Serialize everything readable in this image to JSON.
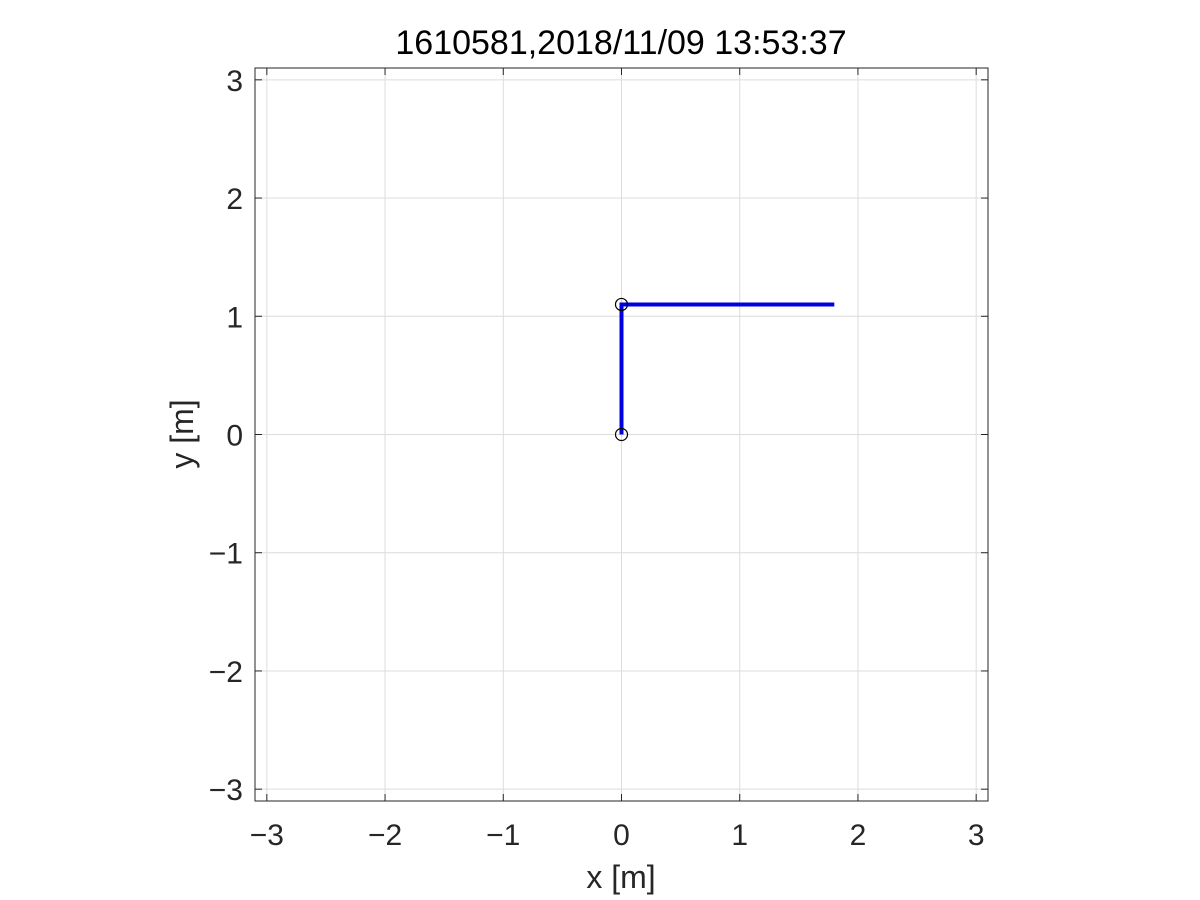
{
  "chart_data": {
    "type": "line",
    "title": "1610581,2018/11/09 13:53:37",
    "xlabel": "x [m]",
    "ylabel": "y [m]",
    "xlim": [
      -3.1,
      3.1
    ],
    "ylim": [
      -3.1,
      3.1
    ],
    "xticks": [
      -3,
      -2,
      -1,
      0,
      1,
      2,
      3
    ],
    "yticks": [
      -3,
      -2,
      -1,
      0,
      1,
      2,
      3
    ],
    "xtick_labels": [
      "−3",
      "−2",
      "−1",
      "0",
      "1",
      "2",
      "3"
    ],
    "ytick_labels": [
      "−3",
      "−2",
      "−1",
      "0",
      "1",
      "2",
      "3"
    ],
    "grid": true,
    "series": [
      {
        "x": [
          0,
          0,
          1.8
        ],
        "y": [
          0,
          1.1,
          1.1
        ],
        "color": "#0000e0"
      }
    ],
    "markers": [
      {
        "x": 0,
        "y": 0,
        "symbol": "circle",
        "color": "#000000"
      },
      {
        "x": 0,
        "y": 1.1,
        "symbol": "circle",
        "color": "#000000"
      }
    ]
  }
}
